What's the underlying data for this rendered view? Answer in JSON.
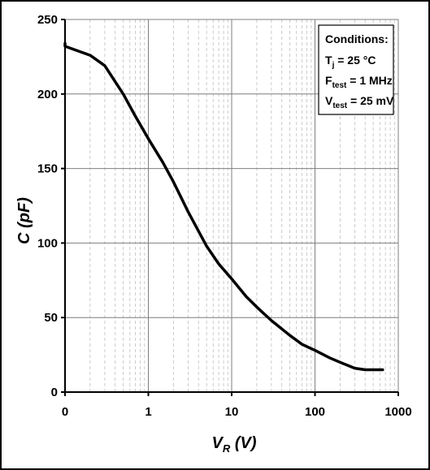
{
  "chart_data": {
    "type": "line",
    "x_scale": "log",
    "xlim": [
      0,
      1000
    ],
    "ylim": [
      0,
      250
    ],
    "x_ticks": [
      "0",
      "1",
      "10",
      "100",
      "1000"
    ],
    "y_ticks": [
      "0",
      "50",
      "100",
      "150",
      "200",
      "250"
    ],
    "grid": true,
    "ylabel": {
      "main": "C",
      "unit": "(pF)"
    },
    "xlabel": {
      "main": "V",
      "sub": "R",
      "unit": "(V)"
    },
    "series": [
      {
        "x": [
          0,
          0.1,
          0.2,
          0.3,
          0.5,
          0.7,
          1,
          1.5,
          2,
          3,
          5,
          7,
          10,
          15,
          20,
          30,
          50,
          70,
          100,
          150,
          200,
          300,
          400,
          650
        ],
        "y": [
          234,
          232,
          226,
          219,
          200,
          185,
          170,
          154,
          141,
          121,
          98,
          86,
          76,
          64,
          57,
          48,
          38,
          32,
          28,
          23,
          20,
          16,
          15,
          15
        ]
      }
    ],
    "legend": {
      "position": "top-right",
      "title": "Conditions:",
      "lines": [
        {
          "main": "T",
          "sub": "j",
          "rest": " = 25 °C"
        },
        {
          "main": "F",
          "sub": "test",
          "rest": " = 1 MHz"
        },
        {
          "main": "V",
          "sub": "test",
          "rest": " = 25 mV"
        }
      ]
    },
    "colors": {
      "line": "#000000",
      "major_grid": "#7f7f7f",
      "minor_grid": "#bfbfbf"
    }
  }
}
